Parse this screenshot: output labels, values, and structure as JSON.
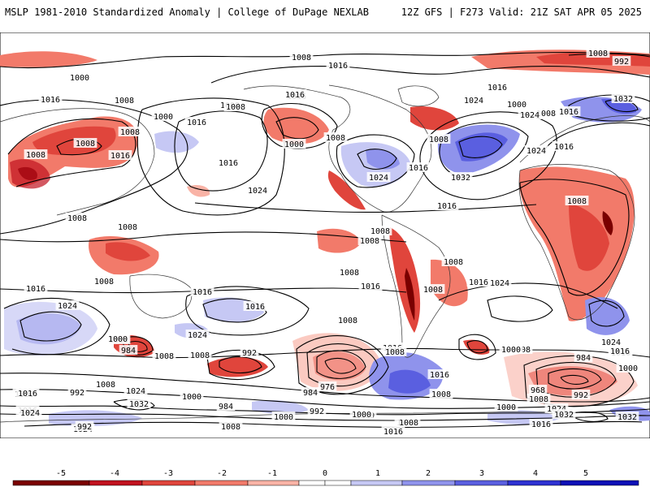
{
  "header": {
    "title": "MSLP 1981-2010 Standardized Anomaly | College of DuPage NEXLAB",
    "run_info": "12Z GFS | F273 Valid: 21Z SAT APR 05 2025"
  },
  "colors": {
    "neg5": "#7a0000",
    "neg4": "#c1121f",
    "neg3": "#e0453c",
    "neg2": "#f27a6a",
    "neg1": "#f9b3a6",
    "neutral": "#ffffff",
    "pos1": "#c6c8f4",
    "pos2": "#8f93ec",
    "pos3": "#5a5fe0",
    "pos4": "#2e32d2",
    "pos5": "#0c10b6"
  },
  "colorbar": {
    "ticks": [
      "-5",
      "-4",
      "-3",
      "-2",
      "-1",
      "0",
      "1",
      "2",
      "3",
      "4",
      "5"
    ]
  },
  "isobar_labels": [
    {
      "text": "1008"
    },
    {
      "text": "1016"
    },
    {
      "text": "1000"
    },
    {
      "text": "992"
    },
    {
      "text": "1008"
    },
    {
      "text": "1016"
    },
    {
      "text": "1008"
    },
    {
      "text": "1016"
    },
    {
      "text": "1024"
    },
    {
      "text": "1008"
    },
    {
      "text": "1016"
    },
    {
      "text": "1008"
    },
    {
      "text": "1000"
    },
    {
      "text": "1008"
    },
    {
      "text": "1008"
    },
    {
      "text": "1016"
    },
    {
      "text": "1000"
    },
    {
      "text": "1024"
    },
    {
      "text": "1032"
    },
    {
      "text": "1008"
    },
    {
      "text": "1016"
    },
    {
      "text": "1024"
    },
    {
      "text": "1016"
    },
    {
      "text": "1000"
    },
    {
      "text": "1008"
    },
    {
      "text": "1008"
    },
    {
      "text": "1032"
    },
    {
      "text": "1016"
    },
    {
      "text": "1024"
    },
    {
      "text": "1016"
    },
    {
      "text": "1024"
    },
    {
      "text": "1016"
    },
    {
      "text": "1008"
    },
    {
      "text": "1016"
    },
    {
      "text": "1008"
    },
    {
      "text": "1008"
    },
    {
      "text": "1008"
    },
    {
      "text": "1008"
    },
    {
      "text": "1008"
    },
    {
      "text": "1008"
    },
    {
      "text": "1008"
    },
    {
      "text": "1008"
    },
    {
      "text": "1008"
    },
    {
      "text": "1016"
    },
    {
      "text": "1016"
    },
    {
      "text": "1016"
    },
    {
      "text": "1016"
    },
    {
      "text": "1024"
    },
    {
      "text": "1024"
    },
    {
      "text": "1016"
    },
    {
      "text": "1000"
    },
    {
      "text": "984"
    },
    {
      "text": "1024"
    },
    {
      "text": "1008"
    },
    {
      "text": "992"
    },
    {
      "text": "1000"
    },
    {
      "text": "1008"
    },
    {
      "text": "1008"
    },
    {
      "text": "976"
    },
    {
      "text": "984"
    },
    {
      "text": "1016"
    },
    {
      "text": "1008"
    },
    {
      "text": "984"
    },
    {
      "text": "1016"
    },
    {
      "text": "1000"
    },
    {
      "text": "992"
    },
    {
      "text": "1008"
    },
    {
      "text": "1024"
    },
    {
      "text": "1032"
    },
    {
      "text": "1000"
    },
    {
      "text": "1016"
    },
    {
      "text": "984"
    },
    {
      "text": "1000"
    },
    {
      "text": "992"
    },
    {
      "text": "1000"
    },
    {
      "text": "1008"
    },
    {
      "text": "1016"
    },
    {
      "text": "1008"
    },
    {
      "text": "1000"
    },
    {
      "text": "1024"
    },
    {
      "text": "1008"
    },
    {
      "text": "1016"
    },
    {
      "text": "1024"
    },
    {
      "text": "1016"
    },
    {
      "text": "1000"
    },
    {
      "text": "1032"
    },
    {
      "text": "1008"
    },
    {
      "text": "968"
    },
    {
      "text": "992"
    },
    {
      "text": "1008"
    },
    {
      "text": "1000"
    },
    {
      "text": "1016"
    },
    {
      "text": "1032"
    },
    {
      "text": "1024"
    },
    {
      "text": "1016"
    },
    {
      "text": "1008"
    },
    {
      "text": "992"
    },
    {
      "text": "1024"
    },
    {
      "text": "1016"
    },
    {
      "text": "1000"
    }
  ]
}
